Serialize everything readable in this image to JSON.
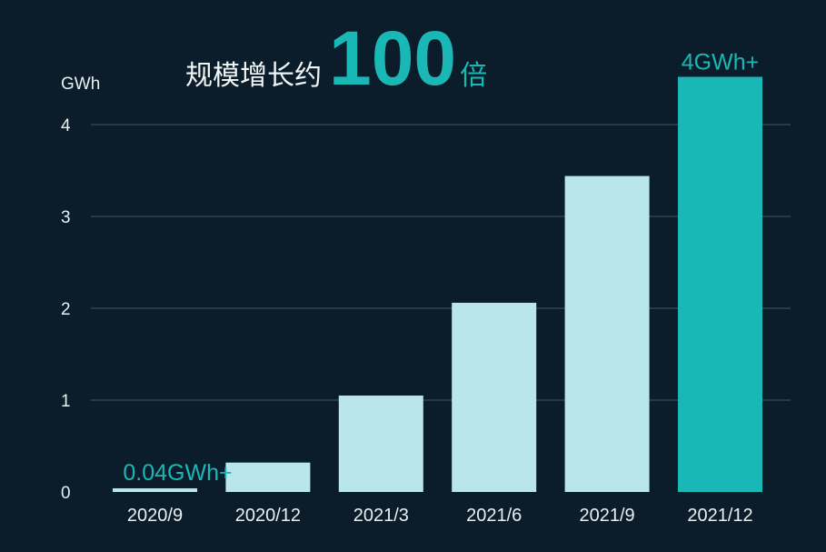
{
  "chart_data": {
    "type": "bar",
    "title": {
      "prefix": "规模增长约",
      "highlight": "100",
      "suffix": "倍"
    },
    "ylabel": "GWh",
    "categories": [
      "2020/9",
      "2020/12",
      "2021/3",
      "2021/6",
      "2021/9",
      "2021/12"
    ],
    "values": [
      0.04,
      0.32,
      1.05,
      2.06,
      3.44,
      4.52
    ],
    "yticks": [
      "0",
      "1",
      "2",
      "3",
      "4"
    ],
    "ylim": [
      0,
      4.6
    ],
    "grid": true,
    "data_labels": [
      {
        "category": "2020/9",
        "text": "0.04GWh+"
      },
      {
        "category": "2021/12",
        "text": "4GWh+"
      }
    ],
    "colors": {
      "background": "#0b1d2b",
      "bar": "#b9e6ea",
      "highlight_bar": "#19b8b6",
      "label": "#19b8b6",
      "text": "#e8f0f2",
      "grid": "#3d5a66"
    },
    "highlight_index": 5
  }
}
